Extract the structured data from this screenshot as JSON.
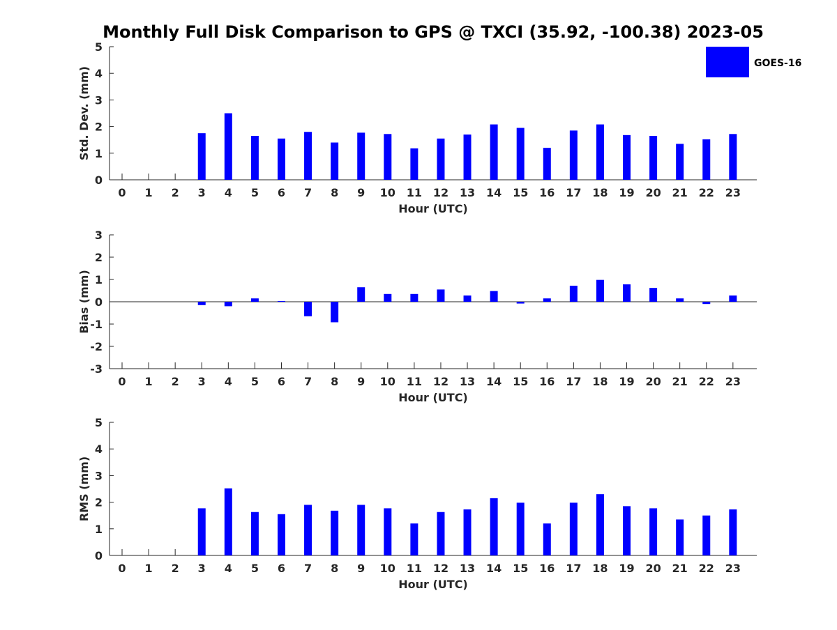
{
  "title": "Monthly Full Disk Comparison to GPS @ TXCI (35.92, -100.38) 2023-05",
  "legend": {
    "label": "GOES-16",
    "color": "#0000ff"
  },
  "chart_data": [
    {
      "type": "bar",
      "name": "std-dev",
      "xlabel": "Hour (UTC)",
      "ylabel": "Std. Dev. (mm)",
      "ylim": [
        0,
        5
      ],
      "yticks": [
        "0",
        "1",
        "2",
        "3",
        "4",
        "5"
      ],
      "categories": [
        "0",
        "1",
        "2",
        "3",
        "4",
        "5",
        "6",
        "7",
        "8",
        "9",
        "10",
        "11",
        "12",
        "13",
        "14",
        "15",
        "16",
        "17",
        "18",
        "19",
        "20",
        "21",
        "22",
        "23"
      ],
      "series": [
        {
          "name": "GOES-16",
          "color": "#0000ff",
          "values": [
            null,
            null,
            null,
            1.75,
            2.5,
            1.65,
            1.55,
            1.8,
            1.4,
            1.77,
            1.72,
            1.18,
            1.55,
            1.7,
            2.08,
            1.95,
            1.2,
            1.85,
            2.08,
            1.68,
            1.65,
            1.35,
            1.52,
            1.72
          ]
        }
      ]
    },
    {
      "type": "bar",
      "name": "bias",
      "xlabel": "Hour (UTC)",
      "ylabel": "Bias (mm)",
      "ylim": [
        -3,
        3
      ],
      "yticks": [
        "-3",
        "-2",
        "-1",
        "0",
        "1",
        "2",
        "3"
      ],
      "categories": [
        "0",
        "1",
        "2",
        "3",
        "4",
        "5",
        "6",
        "7",
        "8",
        "9",
        "10",
        "11",
        "12",
        "13",
        "14",
        "15",
        "16",
        "17",
        "18",
        "19",
        "20",
        "21",
        "22",
        "23"
      ],
      "series": [
        {
          "name": "GOES-16",
          "color": "#0000ff",
          "values": [
            null,
            null,
            null,
            -0.15,
            -0.2,
            0.15,
            0.03,
            -0.65,
            -0.92,
            0.65,
            0.35,
            0.35,
            0.55,
            0.28,
            0.48,
            -0.08,
            0.15,
            0.72,
            0.98,
            0.78,
            0.62,
            0.15,
            -0.1,
            0.28
          ]
        }
      ]
    },
    {
      "type": "bar",
      "name": "rms",
      "xlabel": "Hour (UTC)",
      "ylabel": "RMS (mm)",
      "ylim": [
        0,
        5
      ],
      "yticks": [
        "0",
        "1",
        "2",
        "3",
        "4",
        "5"
      ],
      "categories": [
        "0",
        "1",
        "2",
        "3",
        "4",
        "5",
        "6",
        "7",
        "8",
        "9",
        "10",
        "11",
        "12",
        "13",
        "14",
        "15",
        "16",
        "17",
        "18",
        "19",
        "20",
        "21",
        "22",
        "23"
      ],
      "series": [
        {
          "name": "GOES-16",
          "color": "#0000ff",
          "values": [
            null,
            null,
            null,
            1.77,
            2.52,
            1.63,
            1.55,
            1.9,
            1.68,
            1.9,
            1.77,
            1.2,
            1.63,
            1.73,
            2.15,
            1.98,
            1.2,
            1.98,
            2.3,
            1.85,
            1.77,
            1.35,
            1.5,
            1.73
          ]
        }
      ]
    }
  ]
}
